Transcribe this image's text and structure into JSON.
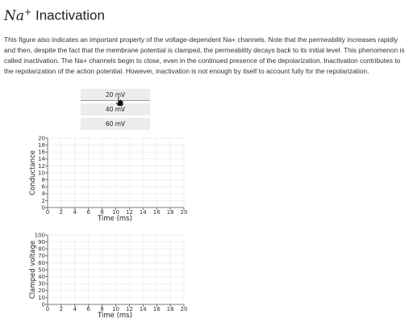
{
  "title": {
    "math_base": "Na",
    "math_sup": "+",
    "text": "Inactivation"
  },
  "description": "This figure also indicates an important property of the voltage-dependent Na+ channels. Note that the permeability increases rapidly and then, despite the fact that the membrane potential is clamped, the permeability decays back to its initial level. This phenomenon is called inactivation. The Na+ channels begin to close, even in the continued presence of the depolarization. Inactivation contributes to the repolarization of the action potential. However, inactivation is not enough by itself to account fully for the repolarization.",
  "voltage_buttons": [
    {
      "label": "20 mV",
      "active": true
    },
    {
      "label": "40 mV",
      "active": false
    },
    {
      "label": "60 mV",
      "active": false
    }
  ],
  "icons": {
    "cursor": "hand-pointer-icon"
  },
  "chart_data": [
    {
      "type": "line",
      "title": "",
      "xlabel": "Time (ms)",
      "ylabel": "Conductance",
      "xlim": [
        0,
        20
      ],
      "ylim": [
        0,
        20
      ],
      "xticks": [
        0,
        2,
        4,
        6,
        8,
        10,
        12,
        14,
        16,
        18,
        20
      ],
      "yticks": [
        0,
        2,
        4,
        6,
        8,
        10,
        12,
        14,
        16,
        18,
        20
      ],
      "grid": true,
      "series": []
    },
    {
      "type": "line",
      "title": "",
      "xlabel": "Time (ms)",
      "ylabel": "Clamped voltage",
      "xlim": [
        0,
        20
      ],
      "ylim": [
        0,
        100
      ],
      "xticks": [
        0,
        2,
        4,
        6,
        8,
        10,
        12,
        14,
        16,
        18,
        20
      ],
      "yticks": [
        0,
        10,
        20,
        30,
        40,
        50,
        60,
        70,
        80,
        90,
        100
      ],
      "grid": true,
      "series": []
    }
  ]
}
